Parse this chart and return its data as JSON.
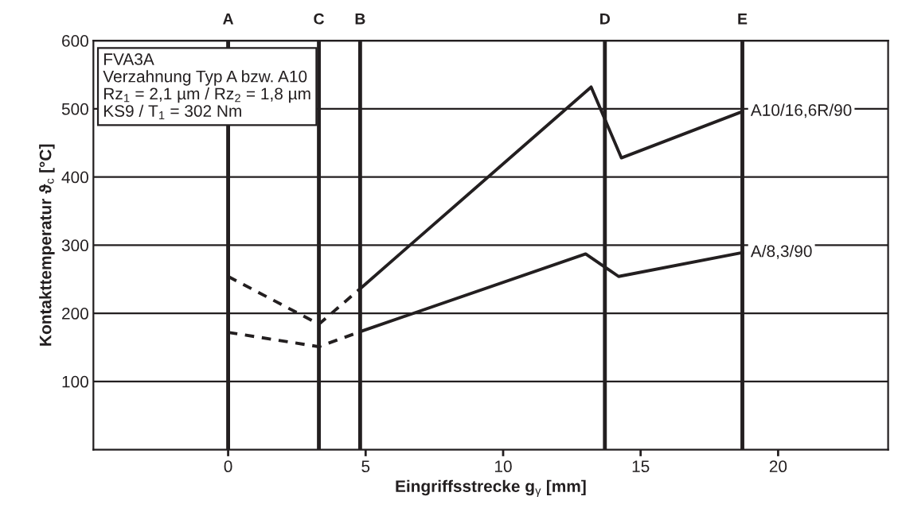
{
  "chart_data": {
    "type": "line",
    "xlabel": "Eingriffsstrecke g$_{γ}$ [mm]",
    "ylabel": "Kontakttemperatur ϑ$_{c}$ [°C]",
    "xlim": [
      -4.9,
      24
    ],
    "xticks": [
      0,
      5,
      10,
      15,
      20
    ],
    "ylim": [
      0,
      600
    ],
    "yticks": [
      100,
      200,
      300,
      400,
      500,
      600
    ],
    "grid": "y",
    "legend": false,
    "marker": "none",
    "series": [
      {
        "color": "#231f20",
        "line_style": "dashed",
        "x": [
          0,
          3.3,
          4.8
        ],
        "values": [
          254,
          184,
          236
        ]
      },
      {
        "name": "A10/16,6R/90",
        "color": "#231f20",
        "line_style": "solid",
        "x": [
          4.8,
          13.2,
          14.3,
          18.7
        ],
        "values": [
          236,
          532,
          428,
          496
        ]
      },
      {
        "color": "#231f20",
        "line_style": "dashed",
        "x": [
          0,
          3.3,
          4.8
        ],
        "values": [
          172,
          151,
          173
        ]
      },
      {
        "name": "A/8,3/90",
        "color": "#231f20",
        "line_style": "solid",
        "x": [
          4.8,
          13.0,
          14.2,
          18.7
        ],
        "values": [
          173,
          287,
          254,
          289
        ]
      }
    ],
    "ref_lines": [
      {
        "axis": "x",
        "value": 0,
        "label": "A",
        "color": "#231f20"
      },
      {
        "axis": "x",
        "value": 3.3,
        "label": "C",
        "color": "#231f20"
      },
      {
        "axis": "x",
        "value": 4.8,
        "label": "B",
        "color": "#231f20"
      },
      {
        "axis": "x",
        "value": 13.7,
        "label": "D",
        "color": "#231f20"
      },
      {
        "axis": "x",
        "value": 18.7,
        "label": "E",
        "color": "#231f20"
      }
    ],
    "annotations": [
      "FVA3A\nVerzahnung Typ A bzw. A10\nRz$_{1}$ = 2,1 µm / Rz$_{2}$ = 1,8 µm\nKS9 / T$_{1}$ = 302 Nm"
    ]
  }
}
